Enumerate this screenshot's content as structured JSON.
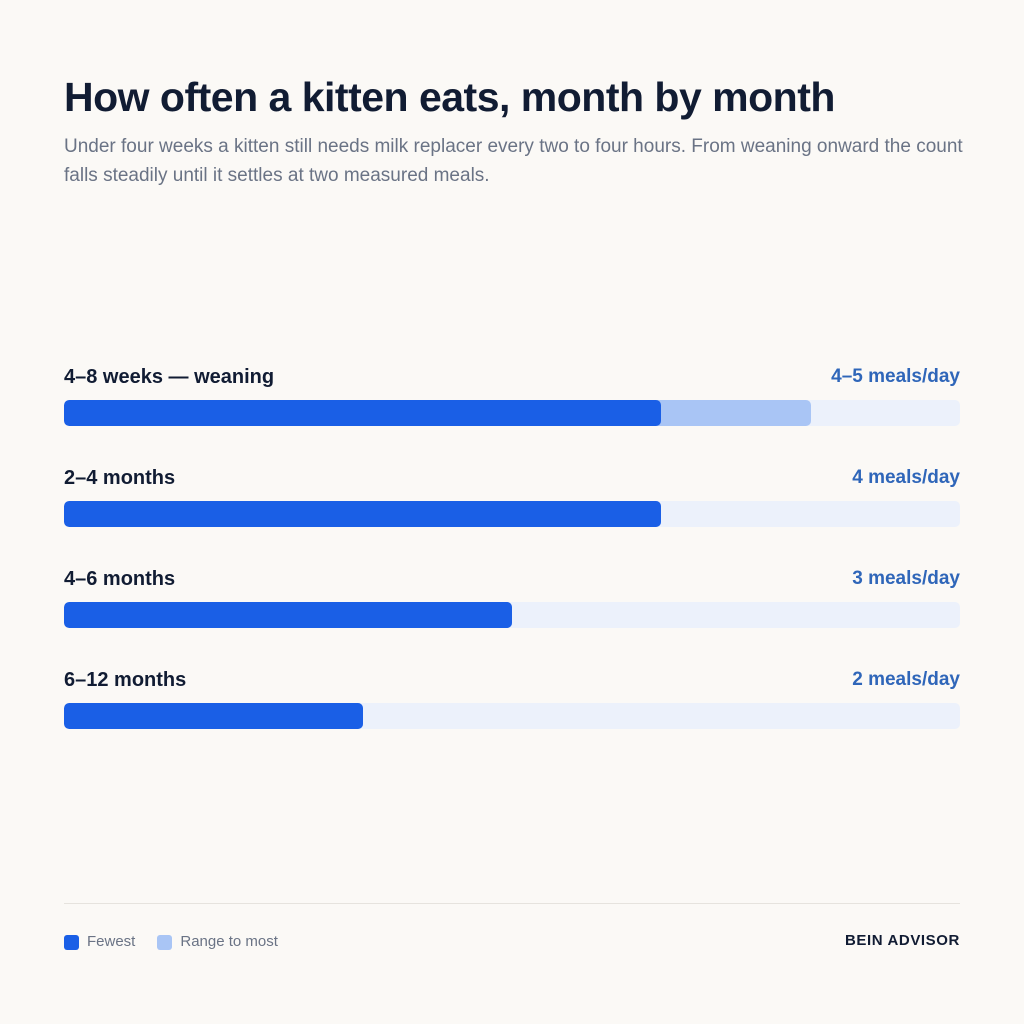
{
  "title": "How often a kitten eats, month by month",
  "subtitle": "Under four weeks a kitten still needs milk replacer every two to four hours. From weaning onward the count falls steadily until it settles at two measured meals.",
  "brand": "BEIN ADVISOR",
  "colors": {
    "fewest": "#1a5fe6",
    "range": "#a9c5f5",
    "track": "#ecf1fb",
    "value_text": "#2f66b9"
  },
  "legend": [
    {
      "label": "Fewest",
      "color": "#1a5fe6"
    },
    {
      "label": "Range to most",
      "color": "#a9c5f5"
    }
  ],
  "chart_data": {
    "type": "bar",
    "orientation": "horizontal",
    "categories": [
      "4–8 weeks — weaning",
      "2–4 months",
      "4–6 months",
      "6–12 months"
    ],
    "value_labels": [
      "4–5 meals/day",
      "4 meals/day",
      "3 meals/day",
      "2 meals/day"
    ],
    "series": [
      {
        "name": "Fewest",
        "values": [
          4,
          4,
          3,
          2
        ]
      },
      {
        "name": "Range to most",
        "values": [
          5,
          4,
          3,
          2
        ]
      }
    ],
    "xlim": [
      0,
      6
    ],
    "grid": false,
    "legend_position": "bottom-left"
  }
}
